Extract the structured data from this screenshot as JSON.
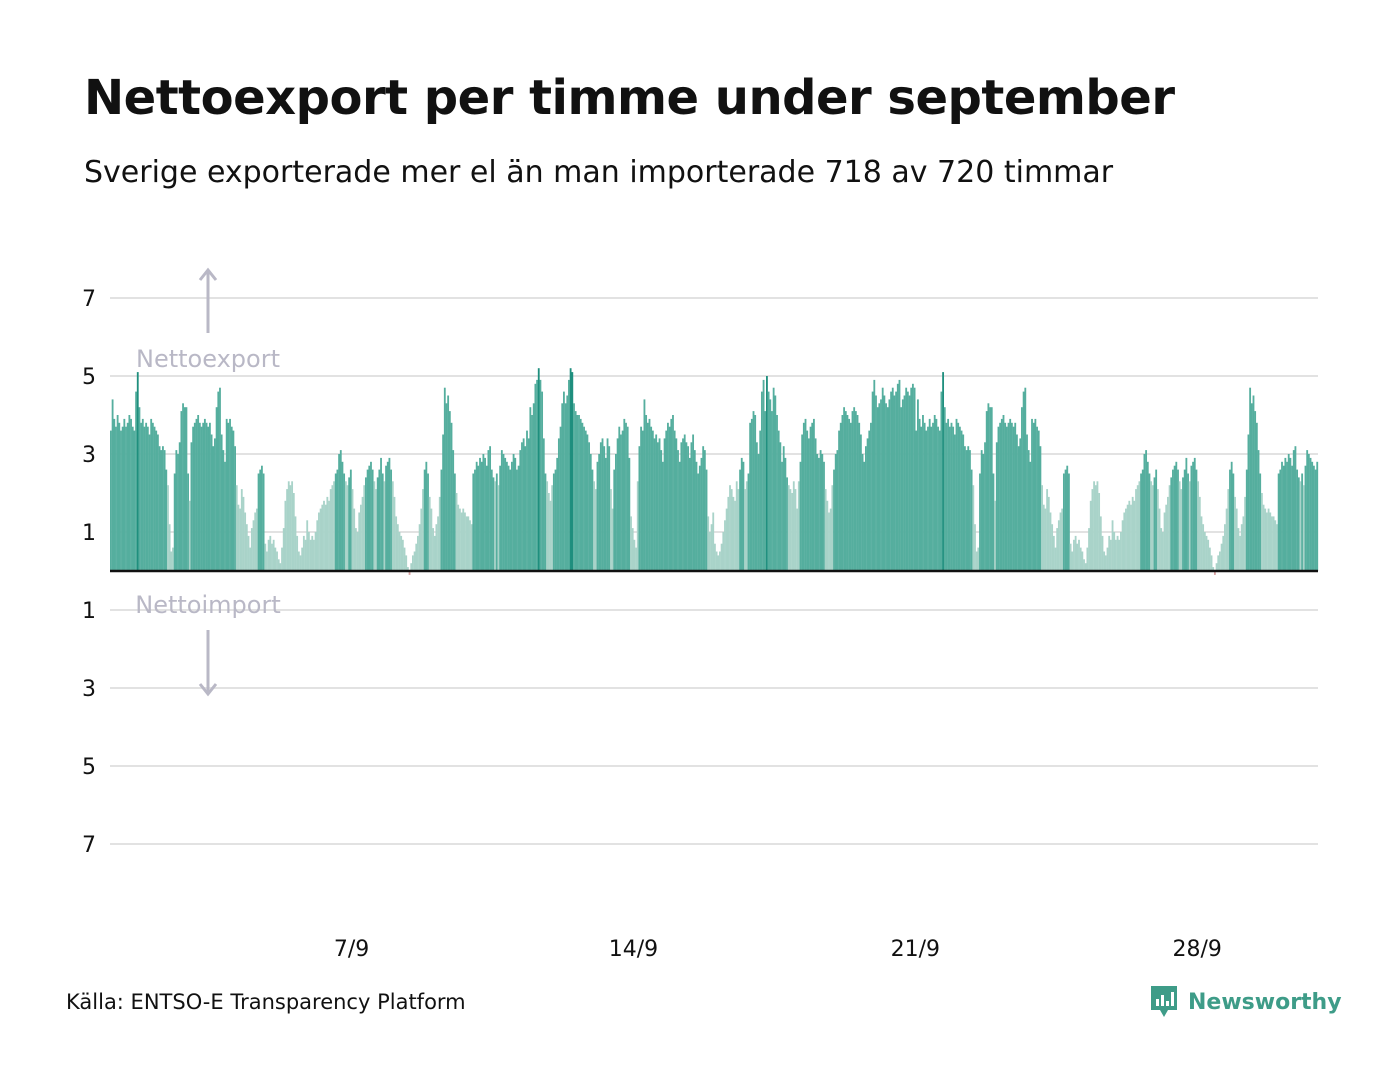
{
  "header": {
    "title": "Nettoexport per timme under september",
    "subtitle": "Sverige exporterade mer el än man importerade 718 av 720 timmar"
  },
  "footer": {
    "source": "Källa: ENTSO-E Transparency Platform",
    "brand": "Newsworthy"
  },
  "colors": {
    "export_dark": "#55ae9e",
    "export_light": "#a9d3c9",
    "export_peak": "#1f8f7e",
    "import": "#d9a0a0",
    "grid": "#e2e2e2",
    "zero_line": "#111111",
    "annotation": "#b9b8c6",
    "brand": "#3e9c88"
  },
  "chart_data": {
    "type": "bar",
    "x_unit": "day of september (hour resolution)",
    "xlim": [
      1,
      31
    ],
    "ylim": [
      -7.5,
      7.5
    ],
    "y_ticks": [
      7,
      5,
      3,
      1,
      -1,
      -3,
      -5,
      -7
    ],
    "y_tick_labels": [
      "7",
      "5",
      "3",
      "1",
      "1",
      "3",
      "5",
      "7"
    ],
    "x_ticks": [
      7,
      14,
      21,
      28
    ],
    "x_tick_labels": [
      "7/9",
      "14/9",
      "21/9",
      "28/9"
    ],
    "annotations": {
      "up": "Nettoexport",
      "down": "Nettoimport"
    },
    "hours_per_day": 24,
    "daily_profile_GW": [
      [
        3.6,
        4.4,
        3.9,
        3.7,
        4.0,
        3.8,
        3.6,
        3.7,
        3.9,
        3.7,
        3.8,
        4.0,
        3.9,
        3.7,
        3.6,
        4.6,
        5.1,
        4.2,
        3.8,
        3.9,
        3.7,
        3.8,
        3.7,
        3.5
      ],
      [
        3.9,
        3.8,
        3.7,
        3.6,
        3.5,
        3.2,
        3.1,
        3.2,
        3.1,
        2.6,
        2.2,
        1.2,
        0.5,
        0.6,
        2.5,
        3.1,
        3.0,
        3.3,
        4.1,
        4.3,
        4.2,
        4.2,
        2.5,
        1.8
      ],
      [
        3.3,
        3.7,
        3.8,
        3.9,
        4.0,
        3.8,
        3.7,
        3.8,
        3.9,
        3.8,
        3.7,
        3.8,
        3.5,
        3.2,
        3.4,
        4.2,
        4.6,
        4.7,
        3.5,
        3.1,
        2.8,
        3.9,
        3.8,
        3.9
      ],
      [
        3.7,
        3.6,
        3.2,
        2.2,
        1.7,
        1.6,
        2.1,
        1.9,
        1.5,
        1.2,
        0.9,
        0.6,
        1.1,
        1.3,
        1.5,
        1.6,
        2.5,
        2.6,
        2.7,
        2.5,
        0.7,
        0.5,
        0.8,
        0.9
      ],
      [
        0.7,
        0.8,
        0.6,
        0.5,
        0.3,
        0.2,
        0.6,
        1.1,
        1.8,
        2.1,
        2.3,
        2.2,
        2.3,
        2.0,
        1.4,
        0.9,
        0.5,
        0.4,
        0.6,
        0.9,
        0.8,
        1.3,
        1.0,
        0.8
      ],
      [
        0.9,
        0.8,
        1.0,
        1.3,
        1.5,
        1.6,
        1.7,
        1.8,
        1.7,
        1.9,
        1.8,
        2.1,
        2.2,
        2.3,
        2.5,
        2.6,
        3.0,
        3.1,
        2.8,
        2.5,
        2.3,
        2.2,
        2.4,
        2.6
      ],
      [
        2.1,
        1.6,
        1.1,
        1.0,
        1.5,
        1.7,
        1.9,
        2.2,
        2.4,
        2.6,
        2.7,
        2.8,
        2.6,
        2.3,
        2.1,
        2.4,
        2.6,
        2.9,
        2.5,
        2.3,
        2.7,
        2.8,
        2.9,
        2.6
      ],
      [
        2.3,
        1.9,
        1.4,
        1.2,
        1.0,
        0.9,
        0.8,
        0.6,
        0.4,
        0.1,
        -0.1,
        0.2,
        0.4,
        0.5,
        0.7,
        0.9,
        1.2,
        1.6,
        2.1,
        2.6,
        2.8,
        2.5,
        1.9,
        1.6
      ],
      [
        1.1,
        0.9,
        1.2,
        1.4,
        1.9,
        2.6,
        3.5,
        4.7,
        4.3,
        4.5,
        4.1,
        3.8,
        3.1,
        2.5,
        2.0,
        1.7,
        1.6,
        1.5,
        1.6,
        1.5,
        1.4,
        1.4,
        1.3,
        1.2
      ],
      [
        2.5,
        2.6,
        2.8,
        2.7,
        2.9,
        2.8,
        3.0,
        2.9,
        2.7,
        3.1,
        3.2,
        2.6,
        2.4,
        2.3,
        2.5,
        2.2,
        2.7,
        3.1,
        3.0,
        2.9,
        2.8,
        2.7,
        2.6,
        2.8
      ],
      [
        3.0,
        2.9,
        2.6,
        2.7,
        3.1,
        3.3,
        3.4,
        3.2,
        3.6,
        3.4,
        4.2,
        4.0,
        4.3,
        4.8,
        4.9,
        5.2,
        4.9,
        4.6,
        3.4,
        2.5,
        2.3,
        2.0,
        1.8,
        2.2
      ],
      [
        2.5,
        2.6,
        2.9,
        3.4,
        3.7,
        4.3,
        4.6,
        4.3,
        4.5,
        4.9,
        5.2,
        5.1,
        4.3,
        4.1,
        4.0,
        4.0,
        3.9,
        3.8,
        3.7,
        3.6,
        3.5,
        3.3,
        3.0,
        2.6
      ],
      [
        2.3,
        2.1,
        2.8,
        3.0,
        3.3,
        3.4,
        3.2,
        2.9,
        3.4,
        3.2,
        2.1,
        1.6,
        2.6,
        3.0,
        3.4,
        3.7,
        3.5,
        3.6,
        3.9,
        3.8,
        3.7,
        2.9,
        1.4,
        1.1
      ],
      [
        0.8,
        0.6,
        2.3,
        3.2,
        3.7,
        3.6,
        4.4,
        4.0,
        3.8,
        3.9,
        3.7,
        3.6,
        3.4,
        3.5,
        3.3,
        3.4,
        3.1,
        2.8,
        3.4,
        3.6,
        3.8,
        3.7,
        3.9,
        4.0
      ],
      [
        3.6,
        3.4,
        3.1,
        2.8,
        3.3,
        3.4,
        3.5,
        3.3,
        3.2,
        2.9,
        3.3,
        3.5,
        3.1,
        2.8,
        2.5,
        2.7,
        2.9,
        3.2,
        3.1,
        2.6,
        1.4,
        1.0,
        1.2,
        1.5
      ],
      [
        0.7,
        0.5,
        0.4,
        0.5,
        0.7,
        1.0,
        1.3,
        1.6,
        1.9,
        2.2,
        2.1,
        1.9,
        1.8,
        2.3,
        2.1,
        2.6,
        2.9,
        2.8,
        2.1,
        2.3,
        2.5,
        3.8,
        3.9,
        4.1
      ],
      [
        4.0,
        3.3,
        3.0,
        3.6,
        4.6,
        4.9,
        4.1,
        5.0,
        4.6,
        4.4,
        4.1,
        4.7,
        4.5,
        4.0,
        3.6,
        3.3,
        2.8,
        3.2,
        2.9,
        2.4,
        2.2,
        2.1,
        2.0,
        2.3
      ],
      [
        2.1,
        1.6,
        2.3,
        2.8,
        3.5,
        3.8,
        3.9,
        3.6,
        3.4,
        3.7,
        3.8,
        3.9,
        3.4,
        3.0,
        2.9,
        3.1,
        3.0,
        2.8,
        2.1,
        1.8,
        1.5,
        1.6,
        2.2,
        2.6
      ],
      [
        3.0,
        3.1,
        3.6,
        3.8,
        4.0,
        4.2,
        4.1,
        4.0,
        3.9,
        3.8,
        4.1,
        4.2,
        4.1,
        4.0,
        3.8,
        3.5,
        3.0,
        2.8,
        3.2,
        3.4,
        3.6,
        3.8,
        4.6,
        4.9
      ],
      [
        4.5,
        4.2,
        4.3,
        4.4,
        4.7,
        4.5,
        4.3,
        4.2,
        4.4,
        4.6,
        4.7,
        4.5,
        4.6,
        4.8,
        4.9,
        4.2,
        4.4,
        4.5,
        4.7,
        4.6,
        4.5,
        4.7,
        4.8,
        4.7
      ]
    ]
  }
}
